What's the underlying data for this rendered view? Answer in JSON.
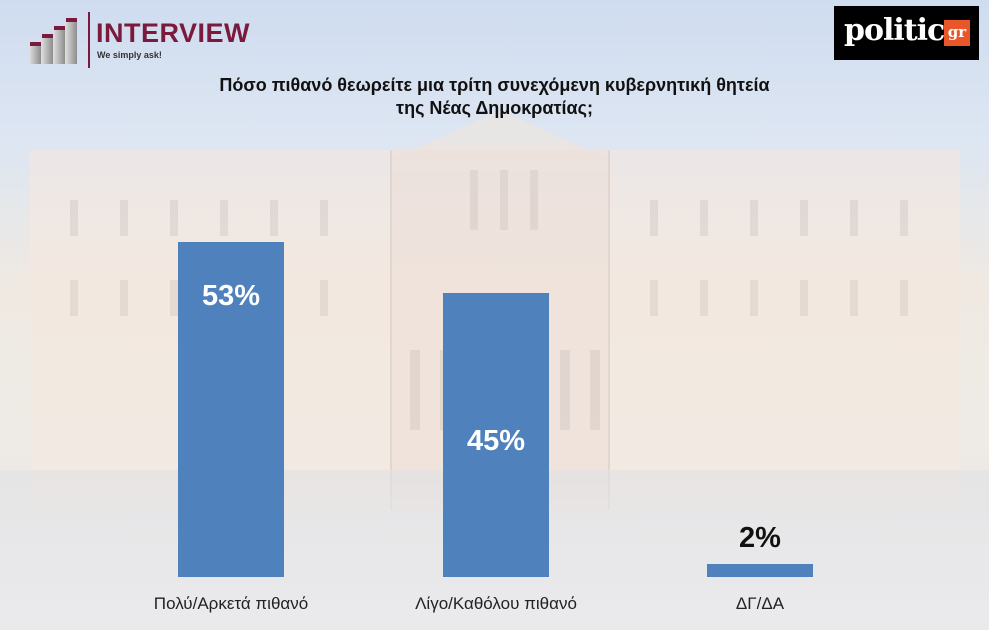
{
  "header": {
    "left_logo": {
      "name": "INTERVIEW",
      "tagline": "We simply ask!",
      "color": "#7a1a3c"
    },
    "right_logo": {
      "name": "politic",
      "suffix": "gr",
      "bg": "#000000",
      "accent": "#e8562a"
    }
  },
  "chart_data": {
    "type": "bar",
    "title": "Πόσο πιθανό θεωρείτε μια τρίτη συνεχόμενη κυβερνητική θητεία της Νέας Δημοκρατίας;",
    "title_lines": [
      "Πόσο πιθανό θεωρείτε μια τρίτη συνεχόμενη κυβερνητική θητεία",
      "της Νέας Δημοκρατίας;"
    ],
    "categories": [
      "Πολύ/Αρκετά πιθανό",
      "Λίγο/Καθόλου πιθανό",
      "ΔΓ/ΔΑ"
    ],
    "values": [
      53,
      45,
      2
    ],
    "value_labels": [
      "53%",
      "45%",
      "2%"
    ],
    "unit": "%",
    "xlabel": "",
    "ylabel": "",
    "ylim": [
      0,
      55
    ],
    "grid": false,
    "legend": "none",
    "bar_color": "#4f81bd"
  }
}
